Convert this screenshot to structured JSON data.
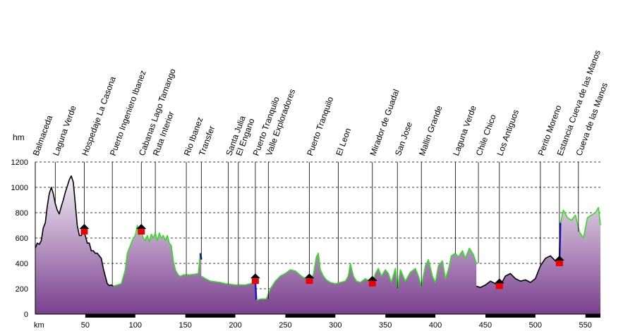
{
  "chart_data": {
    "type": "area",
    "ylabel": "hm",
    "xlabel": "km",
    "xlim": [
      0,
      565
    ],
    "ylim": [
      0,
      1200
    ],
    "x_ticks": [
      50,
      100,
      150,
      200,
      250,
      300,
      350,
      400,
      450,
      500,
      550
    ],
    "y_ticks": [
      0,
      200,
      400,
      600,
      800,
      1000,
      1200
    ],
    "grid": true,
    "colors": {
      "fill_top": "#f3eef6",
      "fill_bottom": "#7a3f8e",
      "paved": "#000000",
      "gravel": "#33dd22",
      "transfer": "#1515d0",
      "waypoint_roof": "#000000",
      "waypoint_body": "#ee0000",
      "km_band": "#000000"
    },
    "waypoints": [
      {
        "name": "Balmaceda",
        "km": 0
      },
      {
        "name": "Laguna Verde",
        "km": 20
      },
      {
        "name": "Hospedaje La Casona",
        "km": 49,
        "marker": true
      },
      {
        "name": "Puerto Ingeniero Ibanez",
        "km": 77
      },
      {
        "name": "Cabanas Lago Tamango",
        "km": 106,
        "marker": true
      },
      {
        "name": "Ruta Interior",
        "km": 120
      },
      {
        "name": "Rio Ibanez",
        "km": 151
      },
      {
        "name": "Transfer",
        "km": 166
      },
      {
        "name": "Santa Julia",
        "km": 193
      },
      {
        "name": "El Engano",
        "km": 203
      },
      {
        "name": "Puerto Tranquilo",
        "km": 220,
        "marker": true
      },
      {
        "name": "Valle Exploradores",
        "km": 233
      },
      {
        "name": "Puerto Tranquilo",
        "km": 274,
        "marker": true
      },
      {
        "name": "El Leon",
        "km": 303
      },
      {
        "name": "Mirador de Guadal",
        "km": 337,
        "marker": true
      },
      {
        "name": "San Jose",
        "km": 362
      },
      {
        "name": "Mallin Grande",
        "km": 386
      },
      {
        "name": "Laguna Verde",
        "km": 420
      },
      {
        "name": "Chile Chico",
        "km": 443
      },
      {
        "name": "Los Antiguos",
        "km": 464,
        "marker": true
      },
      {
        "name": "Perito Moreno",
        "km": 505
      },
      {
        "name": "Estancia Cueva de las Manos",
        "km": 524,
        "marker": true
      },
      {
        "name": "Cueva de las Manos",
        "km": 543
      }
    ],
    "series": [
      {
        "surface": "paved",
        "x": [
          0,
          2,
          4,
          6,
          8,
          10,
          12,
          14,
          16,
          18,
          20,
          22,
          24,
          26,
          28,
          30,
          32,
          34,
          36,
          38,
          40,
          42,
          44,
          46,
          48,
          50,
          52,
          54,
          56,
          58,
          60,
          62,
          64,
          66,
          68,
          70,
          72,
          74,
          76,
          78
        ],
        "values": [
          520,
          560,
          550,
          580,
          680,
          720,
          850,
          950,
          1000,
          950,
          870,
          820,
          790,
          850,
          900,
          960,
          1010,
          1060,
          1090,
          1040,
          870,
          700,
          620,
          620,
          650,
          620,
          560,
          560,
          500,
          500,
          480,
          480,
          460,
          440,
          360,
          300,
          240,
          225,
          230,
          220
        ]
      },
      {
        "surface": "gravel",
        "x": [
          78,
          82,
          86,
          90,
          92,
          94,
          96,
          98,
          100,
          102,
          104,
          106,
          108,
          110,
          112,
          114,
          116,
          118,
          120,
          122,
          124,
          126,
          128,
          130,
          132,
          134,
          136,
          138,
          140,
          142,
          144,
          146,
          148,
          150,
          155,
          160,
          163,
          165
        ],
        "values": [
          220,
          230,
          240,
          350,
          480,
          520,
          560,
          600,
          620,
          700,
          620,
          650,
          600,
          580,
          620,
          570,
          630,
          600,
          640,
          580,
          640,
          600,
          620,
          580,
          620,
          560,
          540,
          420,
          350,
          320,
          300,
          300,
          310,
          310,
          310,
          315,
          320,
          480
        ]
      },
      {
        "surface": "transfer",
        "x": [
          165,
          166
        ],
        "values": [
          480,
          430
        ]
      },
      {
        "surface": "gravel",
        "x": [
          166,
          170,
          175,
          180,
          185,
          190,
          195,
          200,
          205,
          210,
          215,
          219,
          222
        ],
        "values": [
          300,
          280,
          260,
          255,
          250,
          240,
          235,
          230,
          230,
          230,
          240,
          250,
          260
        ]
      },
      {
        "surface": "transfer",
        "x": [
          220,
          221
        ],
        "values": [
          260,
          110
        ]
      },
      {
        "surface": "gravel",
        "x": [
          221,
          226,
          231,
          235,
          240,
          245,
          250,
          255,
          260,
          263,
          266,
          270,
          274,
          278,
          281,
          283,
          285,
          288,
          291,
          295,
          300,
          305,
          310,
          313,
          315,
          318,
          321,
          325,
          330,
          334,
          337,
          340,
          343,
          346,
          350,
          353,
          356,
          360,
          362,
          365,
          370,
          375,
          380,
          383,
          386,
          390,
          393,
          397,
          400,
          403,
          407,
          410,
          413,
          416,
          420,
          423,
          427,
          430,
          434,
          438,
          441
        ],
        "values": [
          110,
          120,
          120,
          200,
          260,
          300,
          320,
          350,
          340,
          320,
          300,
          280,
          260,
          310,
          450,
          480,
          350,
          300,
          270,
          250,
          240,
          250,
          260,
          300,
          400,
          300,
          260,
          250,
          280,
          260,
          240,
          320,
          360,
          300,
          350,
          320,
          250,
          360,
          200,
          350,
          260,
          330,
          360,
          300,
          220,
          380,
          430,
          300,
          250,
          380,
          420,
          280,
          350,
          460,
          480,
          450,
          500,
          440,
          520,
          470,
          400
        ]
      },
      {
        "surface": "paved",
        "x": [
          441,
          445,
          450,
          455,
          460,
          463,
          466,
          470,
          475,
          480,
          485,
          490,
          495,
          500,
          505,
          510,
          515,
          520,
          523
        ],
        "values": [
          220,
          210,
          230,
          260,
          240,
          220,
          240,
          300,
          320,
          280,
          260,
          270,
          250,
          280,
          380,
          440,
          460,
          420,
          400
        ]
      },
      {
        "surface": "transfer",
        "x": [
          524,
          525
        ],
        "values": [
          400,
          720
        ]
      },
      {
        "surface": "gravel",
        "x": [
          525,
          528,
          532,
          536,
          540,
          544,
          548,
          552,
          556,
          560,
          563,
          565
        ],
        "values": [
          720,
          820,
          760,
          740,
          780,
          650,
          600,
          760,
          780,
          800,
          840,
          700
        ]
      }
    ]
  }
}
